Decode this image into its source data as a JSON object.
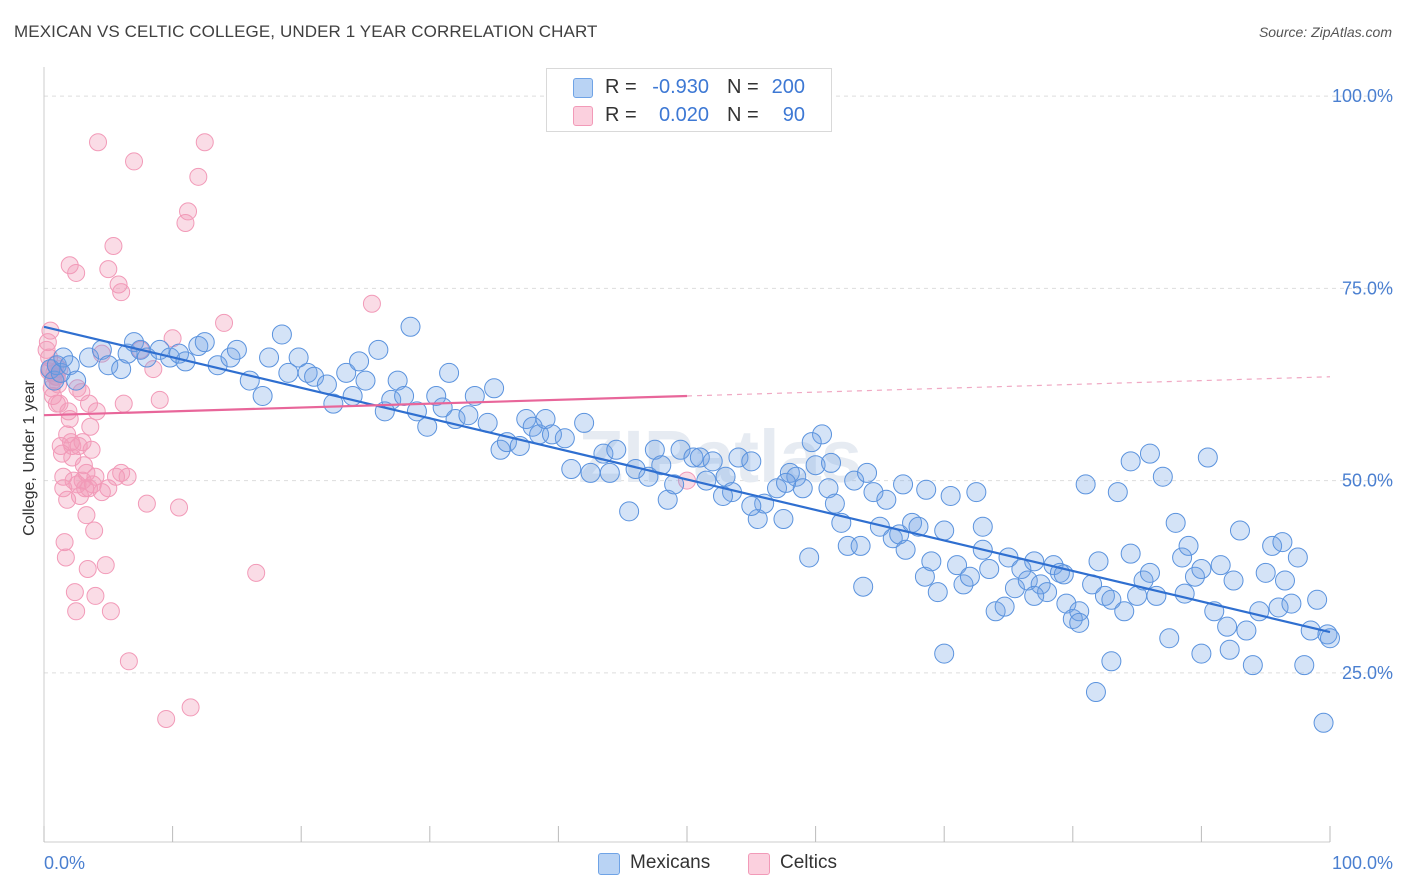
{
  "header": {
    "title": "MEXICAN VS CELTIC COLLEGE, UNDER 1 YEAR CORRELATION CHART",
    "source": "Source: ZipAtlas.com"
  },
  "legend": {
    "rows": [
      {
        "r_label": "R =",
        "r_value": "-0.930",
        "n_label": "N =",
        "n_value": "200"
      },
      {
        "r_label": "R =",
        "r_value": "0.020",
        "n_label": "N =",
        "n_value": "90"
      }
    ]
  },
  "bottom_legend": [
    "Mexicans",
    "Celtics"
  ],
  "watermark": "ZIPatlas",
  "chart_data": {
    "type": "scatter",
    "title": "MEXICAN VS CELTIC COLLEGE, UNDER 1 YEAR CORRELATION CHART",
    "xlabel": "",
    "ylabel": "College, Under 1 year",
    "xlim": [
      0,
      100
    ],
    "ylim": [
      3,
      103
    ],
    "x_ticks_labeled": [
      "0.0%",
      "100.0%"
    ],
    "y_ticks": [
      25,
      50,
      75,
      100
    ],
    "y_tick_labels": [
      "25.0%",
      "50.0%",
      "75.0%",
      "100.0%"
    ],
    "grid": true,
    "legend_position": "top-center",
    "colors": {
      "mexicans": "#6fa3e6",
      "celtics": "#f29ab8",
      "mexicans_line": "#2f6fd0",
      "celtics_line": "#e8669a",
      "tick_text": "#4a7fd0"
    },
    "series": [
      {
        "name": "Mexicans",
        "r": -0.93,
        "n": 200,
        "trend": {
          "x": [
            0,
            100
          ],
          "y": [
            70.0,
            30.3
          ]
        },
        "points": [
          [
            0.5,
            64.5
          ],
          [
            0.8,
            63.0
          ],
          [
            1.0,
            65.0
          ],
          [
            1.3,
            64.0
          ],
          [
            1.5,
            66.0
          ],
          [
            2.0,
            65.0
          ],
          [
            2.5,
            63.0
          ],
          [
            3.5,
            66.0
          ],
          [
            4.5,
            67.0
          ],
          [
            5.0,
            65.0
          ],
          [
            6.0,
            64.5
          ],
          [
            6.5,
            66.5
          ],
          [
            7.0,
            68.0
          ],
          [
            7.5,
            67.0
          ],
          [
            8.0,
            66.0
          ],
          [
            9.0,
            67.0
          ],
          [
            9.8,
            66.0
          ],
          [
            10.5,
            66.5
          ],
          [
            11.0,
            65.5
          ],
          [
            12.0,
            67.5
          ],
          [
            12.5,
            68.0
          ],
          [
            13.5,
            65.0
          ],
          [
            14.5,
            66.0
          ],
          [
            15.0,
            67.0
          ],
          [
            16.0,
            63.0
          ],
          [
            17.0,
            61.0
          ],
          [
            17.5,
            66.0
          ],
          [
            18.5,
            69.0
          ],
          [
            19.0,
            64.0
          ],
          [
            19.8,
            66.0
          ],
          [
            20.5,
            64.0
          ],
          [
            21.0,
            63.5
          ],
          [
            22.0,
            62.5
          ],
          [
            22.5,
            60.0
          ],
          [
            23.5,
            64.0
          ],
          [
            24.0,
            61.0
          ],
          [
            24.5,
            65.5
          ],
          [
            25.0,
            63.0
          ],
          [
            26.0,
            67.0
          ],
          [
            26.5,
            59.0
          ],
          [
            27.0,
            60.5
          ],
          [
            27.5,
            63.0
          ],
          [
            28.0,
            61.0
          ],
          [
            28.5,
            70.0
          ],
          [
            29.0,
            59.0
          ],
          [
            29.8,
            57.0
          ],
          [
            30.5,
            61.0
          ],
          [
            31.0,
            59.5
          ],
          [
            31.5,
            64.0
          ],
          [
            32.0,
            58.0
          ],
          [
            33.0,
            58.5
          ],
          [
            33.5,
            61.0
          ],
          [
            34.5,
            57.5
          ],
          [
            35.0,
            62.0
          ],
          [
            35.5,
            54.0
          ],
          [
            36.0,
            55.0
          ],
          [
            37.0,
            54.5
          ],
          [
            37.5,
            58.0
          ],
          [
            38.0,
            57.0
          ],
          [
            38.5,
            56.0
          ],
          [
            39.0,
            58.0
          ],
          [
            39.5,
            56.0
          ],
          [
            40.5,
            55.5
          ],
          [
            41.0,
            51.5
          ],
          [
            42.0,
            57.5
          ],
          [
            42.5,
            51.0
          ],
          [
            43.5,
            53.5
          ],
          [
            44.0,
            51.0
          ],
          [
            44.5,
            54.0
          ],
          [
            45.5,
            46.0
          ],
          [
            46.0,
            51.5
          ],
          [
            47.0,
            50.5
          ],
          [
            47.5,
            54.0
          ],
          [
            48.0,
            52.0
          ],
          [
            48.5,
            47.5
          ],
          [
            49.0,
            49.5
          ],
          [
            49.5,
            54.0
          ],
          [
            50.5,
            53.0
          ],
          [
            51.0,
            53.0
          ],
          [
            51.5,
            50.0
          ],
          [
            52.0,
            52.5
          ],
          [
            53.0,
            50.5
          ],
          [
            53.5,
            48.5
          ],
          [
            54.0,
            53.0
          ],
          [
            55.0,
            52.5
          ],
          [
            55.5,
            45.0
          ],
          [
            56.0,
            47.0
          ],
          [
            57.0,
            49.0
          ],
          [
            57.5,
            45.0
          ],
          [
            58.0,
            51.0
          ],
          [
            58.5,
            50.5
          ],
          [
            59.0,
            49.0
          ],
          [
            59.5,
            40.0
          ],
          [
            60.0,
            52.0
          ],
          [
            60.5,
            56.0
          ],
          [
            61.0,
            49.0
          ],
          [
            61.5,
            47.0
          ],
          [
            62.0,
            44.5
          ],
          [
            62.5,
            41.5
          ],
          [
            63.0,
            50.0
          ],
          [
            63.5,
            41.5
          ],
          [
            64.0,
            51.0
          ],
          [
            64.5,
            48.5
          ],
          [
            65.0,
            44.0
          ],
          [
            65.5,
            47.5
          ],
          [
            66.0,
            42.5
          ],
          [
            66.5,
            43.0
          ],
          [
            67.0,
            41.0
          ],
          [
            67.5,
            44.5
          ],
          [
            68.0,
            44.0
          ],
          [
            68.5,
            37.5
          ],
          [
            69.0,
            39.5
          ],
          [
            69.5,
            35.5
          ],
          [
            70.0,
            43.5
          ],
          [
            70.5,
            48.0
          ],
          [
            71.0,
            39.0
          ],
          [
            71.5,
            36.5
          ],
          [
            72.0,
            37.5
          ],
          [
            72.5,
            48.5
          ],
          [
            73.0,
            41.0
          ],
          [
            73.5,
            38.5
          ],
          [
            74.0,
            33.0
          ],
          [
            75.0,
            40.0
          ],
          [
            75.5,
            36.0
          ],
          [
            76.0,
            38.5
          ],
          [
            76.5,
            37.0
          ],
          [
            77.0,
            39.5
          ],
          [
            77.5,
            36.5
          ],
          [
            78.0,
            35.5
          ],
          [
            78.5,
            39.0
          ],
          [
            79.0,
            38.0
          ],
          [
            79.5,
            34.0
          ],
          [
            80.0,
            32.0
          ],
          [
            80.5,
            33.0
          ],
          [
            81.0,
            49.5
          ],
          [
            81.5,
            36.5
          ],
          [
            82.0,
            39.5
          ],
          [
            82.5,
            35.0
          ],
          [
            83.0,
            34.5
          ],
          [
            83.5,
            48.5
          ],
          [
            84.0,
            33.0
          ],
          [
            84.5,
            40.5
          ],
          [
            85.0,
            35.0
          ],
          [
            85.5,
            37.0
          ],
          [
            86.0,
            38.0
          ],
          [
            86.5,
            35.0
          ],
          [
            87.0,
            50.5
          ],
          [
            87.5,
            29.5
          ],
          [
            88.0,
            44.5
          ],
          [
            88.5,
            40.0
          ],
          [
            89.0,
            41.5
          ],
          [
            89.5,
            37.5
          ],
          [
            90.0,
            38.5
          ],
          [
            90.5,
            53.0
          ],
          [
            91.0,
            33.0
          ],
          [
            91.5,
            39.0
          ],
          [
            92.0,
            31.0
          ],
          [
            92.5,
            37.0
          ],
          [
            93.0,
            43.5
          ],
          [
            93.5,
            30.5
          ],
          [
            94.0,
            26.0
          ],
          [
            94.5,
            33.0
          ],
          [
            95.0,
            38.0
          ],
          [
            95.5,
            41.5
          ],
          [
            96.0,
            33.5
          ],
          [
            96.5,
            37.0
          ],
          [
            97.0,
            34.0
          ],
          [
            97.5,
            40.0
          ],
          [
            98.0,
            26.0
          ],
          [
            98.5,
            30.5
          ],
          [
            99.0,
            34.5
          ],
          [
            99.5,
            18.5
          ],
          [
            99.8,
            30.0
          ],
          [
            100.0,
            29.5
          ],
          [
            96.3,
            42.0
          ],
          [
            92.2,
            28.0
          ],
          [
            90.0,
            27.5
          ],
          [
            88.7,
            35.3
          ],
          [
            86.0,
            53.5
          ],
          [
            84.5,
            52.5
          ],
          [
            83.0,
            26.5
          ],
          [
            81.8,
            22.5
          ],
          [
            80.5,
            31.5
          ],
          [
            79.3,
            37.8
          ],
          [
            77.0,
            35.0
          ],
          [
            74.7,
            33.6
          ],
          [
            73.0,
            44.0
          ],
          [
            70.0,
            27.5
          ],
          [
            68.6,
            48.8
          ],
          [
            66.8,
            49.5
          ],
          [
            63.7,
            36.2
          ],
          [
            61.2,
            52.3
          ],
          [
            59.7,
            55.0
          ],
          [
            57.7,
            49.7
          ],
          [
            55.0,
            46.7
          ],
          [
            52.8,
            48.0
          ]
        ]
      },
      {
        "name": "Celtics",
        "r": 0.02,
        "n": 90,
        "trend": {
          "x": [
            0,
            50
          ],
          "y": [
            58.5,
            61.0
          ],
          "dashed_to": [
            100,
            63.5
          ]
        },
        "points": [
          [
            0.3,
            68.0
          ],
          [
            0.4,
            66.0
          ],
          [
            0.5,
            64.5
          ],
          [
            0.6,
            62.0
          ],
          [
            0.7,
            61.0
          ],
          [
            0.8,
            64.0
          ],
          [
            0.9,
            65.0
          ],
          [
            1.0,
            63.5
          ],
          [
            1.1,
            62.5
          ],
          [
            1.2,
            60.0
          ],
          [
            1.3,
            54.5
          ],
          [
            1.4,
            53.5
          ],
          [
            1.5,
            49.0
          ],
          [
            1.6,
            42.0
          ],
          [
            1.7,
            40.0
          ],
          [
            1.8,
            56.0
          ],
          [
            1.9,
            59.0
          ],
          [
            2.0,
            58.0
          ],
          [
            2.1,
            55.0
          ],
          [
            2.2,
            53.0
          ],
          [
            2.3,
            50.0
          ],
          [
            2.4,
            35.5
          ],
          [
            2.5,
            33.0
          ],
          [
            2.6,
            62.0
          ],
          [
            2.7,
            54.5
          ],
          [
            2.8,
            48.0
          ],
          [
            2.9,
            61.5
          ],
          [
            3.0,
            55.0
          ],
          [
            3.1,
            52.0
          ],
          [
            3.2,
            49.0
          ],
          [
            3.3,
            45.5
          ],
          [
            3.4,
            38.5
          ],
          [
            3.5,
            60.0
          ],
          [
            3.6,
            57.0
          ],
          [
            3.7,
            54.0
          ],
          [
            3.8,
            49.5
          ],
          [
            3.9,
            43.5
          ],
          [
            4.0,
            35.0
          ],
          [
            4.1,
            59.0
          ],
          [
            4.2,
            94.0
          ],
          [
            4.5,
            48.5
          ],
          [
            4.8,
            39.0
          ],
          [
            5.0,
            77.5
          ],
          [
            5.2,
            33.0
          ],
          [
            5.4,
            80.5
          ],
          [
            5.6,
            50.5
          ],
          [
            5.8,
            75.5
          ],
          [
            6.0,
            74.5
          ],
          [
            6.2,
            60.0
          ],
          [
            6.5,
            50.5
          ],
          [
            6.6,
            26.5
          ],
          [
            7.0,
            91.5
          ],
          [
            7.5,
            67.0
          ],
          [
            8.0,
            47.0
          ],
          [
            8.5,
            64.5
          ],
          [
            9.0,
            60.5
          ],
          [
            9.5,
            19.0
          ],
          [
            10.0,
            68.5
          ],
          [
            10.5,
            46.5
          ],
          [
            11.0,
            83.5
          ],
          [
            11.2,
            85.0
          ],
          [
            11.4,
            20.5
          ],
          [
            12.0,
            89.5
          ],
          [
            12.5,
            94.0
          ],
          [
            14.0,
            70.5
          ],
          [
            16.5,
            38.0
          ],
          [
            25.5,
            73.0
          ],
          [
            50.0,
            50.0
          ],
          [
            0.2,
            67.0
          ],
          [
            0.5,
            69.5
          ],
          [
            1.0,
            60.0
          ],
          [
            2.0,
            78.0
          ],
          [
            2.5,
            77.0
          ],
          [
            1.5,
            50.5
          ],
          [
            3.0,
            50.0
          ],
          [
            3.5,
            49.0
          ],
          [
            4.5,
            66.5
          ],
          [
            0.7,
            63.0
          ],
          [
            1.2,
            64.5
          ],
          [
            2.2,
            54.5
          ],
          [
            0.4,
            64.2
          ],
          [
            0.9,
            63.5
          ],
          [
            1.8,
            47.5
          ],
          [
            2.6,
            49.5
          ],
          [
            3.3,
            51.0
          ],
          [
            4.0,
            50.5
          ],
          [
            5.0,
            49.0
          ],
          [
            6.0,
            51.0
          ]
        ]
      }
    ]
  }
}
